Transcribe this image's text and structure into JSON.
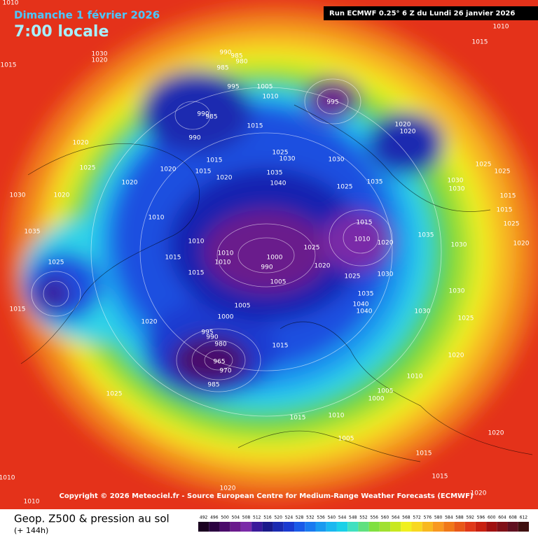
{
  "header": {
    "date": "Dimanche 1 février 2026",
    "time": "7:00 locale",
    "run": "Run ECMWF 0.25° 6 Z du Lundi 26 janvier 2026"
  },
  "copyright": "Copyright © 2026 Meteociel.fr - Source European Centre for Medium-Range Weather Forecasts (ECMWF)",
  "footer": {
    "title": "Geop. Z500 & pression au sol",
    "lead": "(+ 144h)"
  },
  "pressure_labels": [
    1010,
    1015,
    1030,
    1020,
    990,
    985,
    980,
    985,
    995,
    1005,
    1010,
    995,
    990,
    985,
    990,
    1015,
    1020,
    1020,
    1015,
    1015,
    1020,
    1025,
    1030,
    1035,
    1040,
    1030,
    1025,
    1035,
    1020,
    1020,
    1010,
    1015,
    1025,
    1025,
    1030,
    1030,
    1015,
    1015,
    1035,
    1025,
    1030,
    1020,
    1025,
    1020,
    1010,
    1010,
    1015,
    1015,
    1010,
    1010,
    1000,
    990,
    1005,
    1025,
    1020,
    1015,
    1010,
    1020,
    1025,
    1030,
    1035,
    1040,
    1040,
    1030,
    1005,
    1000,
    995,
    990,
    980,
    965,
    970,
    985,
    1020,
    1015,
    1025,
    1015,
    1005,
    1000,
    1010,
    1015,
    1010,
    1005,
    1020,
    1020,
    1015,
    1010,
    1010,
    1020,
    1015,
    1020,
    1030,
    1025,
    1035,
    1030,
    1020,
    1025
  ],
  "colorbar": {
    "levels": [
      492,
      496,
      500,
      504,
      508,
      512,
      516,
      520,
      524,
      528,
      532,
      536,
      540,
      544,
      548,
      552,
      556,
      560,
      564,
      568,
      572,
      576,
      580,
      584,
      588,
      592,
      596,
      600,
      604,
      608,
      612
    ],
    "colors": [
      "#1a0020",
      "#2a0040",
      "#4a0a6a",
      "#6a1a8c",
      "#7a2aa8",
      "#3a1a9a",
      "#1a1a8a",
      "#1a2ab0",
      "#1a3ad0",
      "#1a5ae8",
      "#1a7af0",
      "#1a9af0",
      "#1ab8f0",
      "#1ad0e8",
      "#40e0c0",
      "#60e080",
      "#80e040",
      "#a0e030",
      "#c8e820",
      "#f0f020",
      "#f8d820",
      "#f8b820",
      "#f89820",
      "#f07818",
      "#e85818",
      "#e03818",
      "#c82010",
      "#a01010",
      "#801018",
      "#601020",
      "#401010"
    ]
  }
}
